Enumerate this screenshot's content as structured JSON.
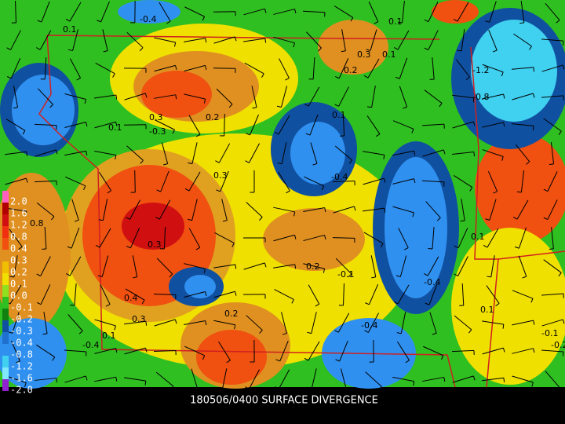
{
  "title": "180506/0400 SURFACE DIVERGENCE",
  "legend": {
    "levels": [
      "2.0",
      "1.6",
      "1.2",
      "0.8",
      "0.4",
      "0.3",
      "0.2",
      "0.1",
      "0.0",
      "-0.1",
      "-0.2",
      "-0.3",
      "-0.4",
      "-0.8",
      "-1.2",
      "-1.6",
      "-2.0"
    ]
  },
  "contour_labels": [
    "-0.4",
    "0.1",
    "0.1",
    "0.3",
    "0.1",
    "0.2",
    "-1.2",
    "-0.8",
    "0.1",
    "0.3",
    "0.2",
    "0.1",
    "-0.3",
    "-0.4",
    "0.3",
    "0.8",
    "0.3",
    "-0.1",
    "0.2",
    "-0.4",
    "0.4",
    "0.3",
    "-0.4",
    "0.2",
    "0.1",
    "-0.4",
    "0.1",
    "-0.1",
    "-0.2",
    "0.1"
  ]
}
